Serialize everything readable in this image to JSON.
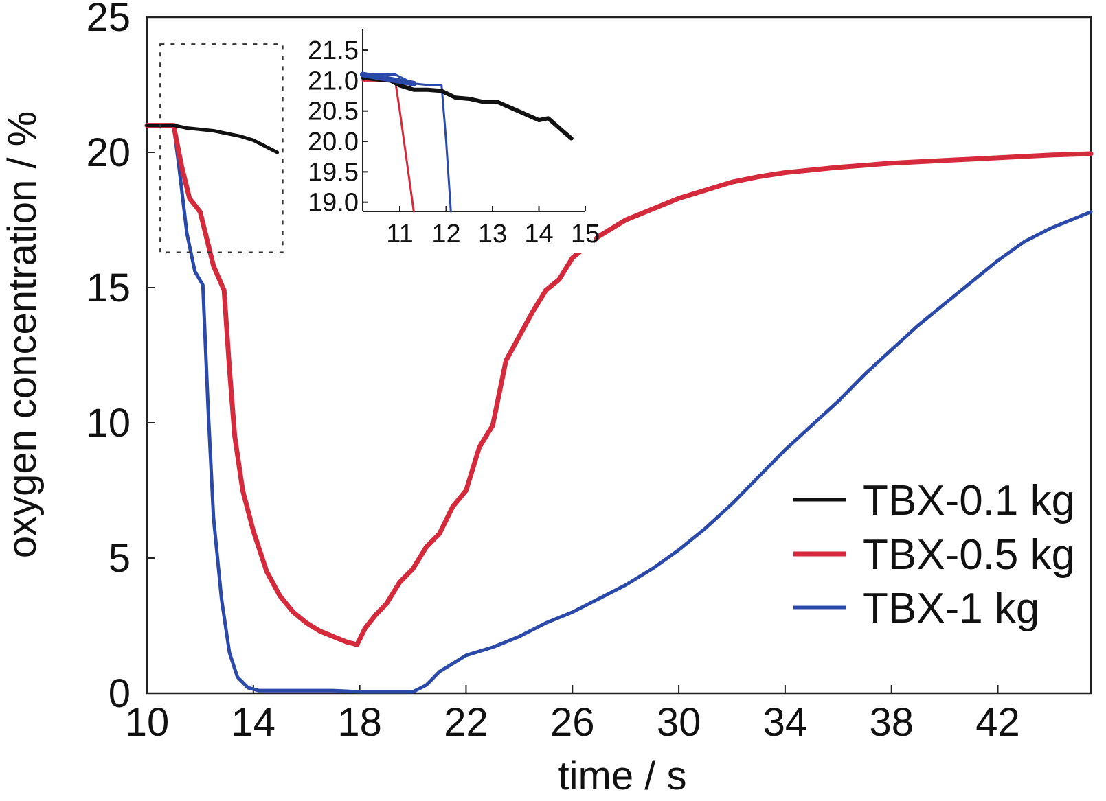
{
  "chart_data": [
    {
      "type": "line",
      "title": "",
      "xlabel": "time / s",
      "ylabel": "oxygen concentration / %",
      "xlim": [
        10,
        45.5
      ],
      "ylim": [
        0,
        25
      ],
      "xticks": [
        "10",
        "14",
        "18",
        "22",
        "26",
        "30",
        "34",
        "38",
        "42"
      ],
      "yticks": [
        "0",
        "5",
        "10",
        "15",
        "20",
        "25"
      ],
      "grid": false,
      "legend_position": "bottom-right",
      "series": [
        {
          "name": "TBX-0.1 kg",
          "color": "#111111",
          "x": [
            10,
            10.5,
            11,
            11.5,
            12,
            12.5,
            13,
            13.5,
            14,
            14.5,
            14.9
          ],
          "y": [
            21.0,
            21.0,
            21.0,
            20.9,
            20.85,
            20.8,
            20.7,
            20.6,
            20.45,
            20.2,
            20.0
          ]
        },
        {
          "name": "TBX-0.5 kg",
          "color": "#d42a3c",
          "x": [
            10,
            10.5,
            11,
            11.3,
            11.6,
            12,
            12.5,
            12.9,
            13.1,
            13.3,
            13.6,
            14,
            14.5,
            15,
            15.5,
            16,
            16.5,
            17,
            17.5,
            17.9,
            18.2,
            18.6,
            19,
            19.5,
            20,
            20.5,
            21,
            21.5,
            22,
            22.5,
            23,
            23.5,
            24,
            24.5,
            25,
            25.5,
            26,
            27,
            28,
            29,
            30,
            31,
            32,
            33,
            34,
            35,
            36,
            38,
            40,
            42,
            44,
            45.5
          ],
          "y": [
            21.0,
            21.0,
            21.0,
            19.5,
            18.3,
            17.8,
            15.8,
            14.9,
            12.0,
            9.5,
            7.5,
            6.0,
            4.5,
            3.6,
            3.0,
            2.6,
            2.3,
            2.1,
            1.9,
            1.8,
            2.4,
            2.9,
            3.3,
            4.1,
            4.6,
            5.4,
            5.9,
            6.9,
            7.5,
            9.1,
            9.9,
            12.3,
            13.2,
            14.1,
            14.9,
            15.3,
            16.1,
            16.9,
            17.5,
            17.9,
            18.3,
            18.6,
            18.9,
            19.1,
            19.25,
            19.35,
            19.45,
            19.6,
            19.7,
            19.8,
            19.9,
            19.95
          ]
        },
        {
          "name": "TBX-1 kg",
          "color": "#2b49a8",
          "x": [
            10,
            10.5,
            11,
            11.2,
            11.5,
            11.8,
            12.1,
            12.3,
            12.5,
            12.8,
            13.1,
            13.4,
            13.8,
            14.2,
            15,
            16,
            17,
            18,
            19,
            19.5,
            20,
            20.5,
            21,
            21.5,
            22,
            23,
            24,
            25,
            26,
            27,
            28,
            29,
            30,
            31,
            32,
            33,
            34,
            35,
            36,
            37,
            38,
            39,
            40,
            41,
            42,
            43,
            44,
            45.5
          ],
          "y": [
            21.0,
            21.0,
            21.0,
            19.5,
            17.0,
            15.6,
            15.1,
            10.5,
            6.5,
            3.5,
            1.5,
            0.6,
            0.2,
            0.1,
            0.1,
            0.1,
            0.1,
            0.05,
            0.05,
            0.05,
            0.05,
            0.3,
            0.8,
            1.1,
            1.4,
            1.7,
            2.1,
            2.6,
            3.0,
            3.5,
            4.0,
            4.6,
            5.3,
            6.1,
            7.0,
            8.0,
            9.0,
            9.9,
            10.8,
            11.8,
            12.7,
            13.6,
            14.4,
            15.2,
            16.0,
            16.7,
            17.2,
            17.8
          ]
        }
      ]
    },
    {
      "type": "line",
      "title": "",
      "xlabel": "",
      "ylabel": "",
      "xlim": [
        10.2,
        15
      ],
      "ylim": [
        18.85,
        21.85
      ],
      "xticks": [
        "11",
        "12",
        "13",
        "14",
        "15"
      ],
      "yticks": [
        "19.0",
        "19.5",
        "20.0",
        "20.5",
        "21.0",
        "21.5"
      ],
      "grid": false,
      "series": [
        {
          "color": "#111111",
          "x": [
            10.2,
            10.5,
            10.8,
            11.0,
            11.3,
            11.6,
            11.9,
            12.2,
            12.5,
            12.8,
            13.1,
            13.4,
            13.7,
            14.0,
            14.2,
            14.5,
            14.7
          ],
          "y": [
            21.05,
            21.02,
            21.0,
            20.92,
            20.85,
            20.85,
            20.83,
            20.72,
            20.7,
            20.65,
            20.65,
            20.55,
            20.45,
            20.35,
            20.38,
            20.18,
            20.05
          ]
        },
        {
          "color": "#d42a3c",
          "x": [
            10.2,
            10.5,
            10.9,
            11.0,
            11.3
          ],
          "y": [
            21.0,
            21.0,
            21.0,
            20.5,
            18.85
          ]
        },
        {
          "color": "#2b49a8",
          "x": [
            10.2,
            10.5,
            10.9,
            11.3,
            11.7,
            11.9,
            12.0,
            12.1
          ],
          "y": [
            21.1,
            21.1,
            21.1,
            20.95,
            20.92,
            20.92,
            20.0,
            18.85
          ]
        }
      ]
    }
  ]
}
